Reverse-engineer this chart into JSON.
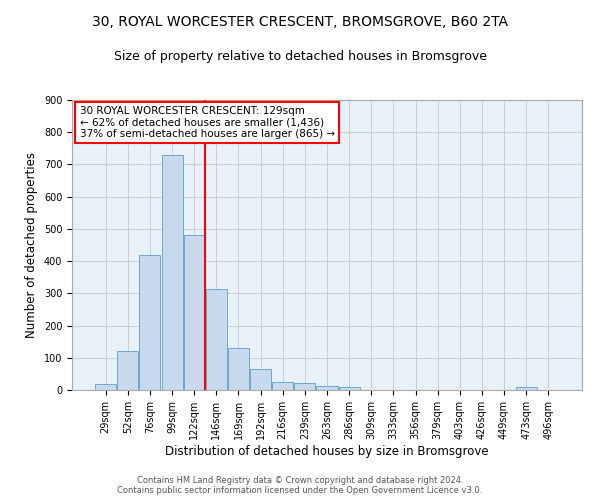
{
  "title1": "30, ROYAL WORCESTER CRESCENT, BROMSGROVE, B60 2TA",
  "title2": "Size of property relative to detached houses in Bromsgrove",
  "xlabel": "Distribution of detached houses by size in Bromsgrove",
  "ylabel": "Number of detached properties",
  "bar_color": "#c8d9ed",
  "bar_edge_color": "#6aaad4",
  "categories": [
    "29sqm",
    "52sqm",
    "76sqm",
    "99sqm",
    "122sqm",
    "146sqm",
    "169sqm",
    "192sqm",
    "216sqm",
    "239sqm",
    "263sqm",
    "286sqm",
    "309sqm",
    "333sqm",
    "356sqm",
    "379sqm",
    "403sqm",
    "426sqm",
    "449sqm",
    "473sqm",
    "496sqm"
  ],
  "values": [
    20,
    122,
    420,
    730,
    480,
    315,
    130,
    65,
    25,
    22,
    12,
    10,
    0,
    0,
    0,
    0,
    0,
    0,
    0,
    10,
    0
  ],
  "vline_pos": 4.5,
  "annotation_text": "30 ROYAL WORCESTER CRESCENT: 129sqm\n← 62% of detached houses are smaller (1,436)\n37% of semi-detached houses are larger (865) →",
  "annotation_box_color": "white",
  "annotation_box_edge_color": "red",
  "vline_color": "red",
  "ylim": [
    0,
    900
  ],
  "yticks": [
    0,
    100,
    200,
    300,
    400,
    500,
    600,
    700,
    800,
    900
  ],
  "grid_color": "#c8c8c8",
  "background_color": "#e8f0f8",
  "footer1": "Contains HM Land Registry data © Crown copyright and database right 2024.",
  "footer2": "Contains public sector information licensed under the Open Government Licence v3.0.",
  "title1_fontsize": 10,
  "title2_fontsize": 9,
  "xlabel_fontsize": 8.5,
  "ylabel_fontsize": 8.5,
  "tick_fontsize": 7,
  "annotation_fontsize": 7.5,
  "footer_fontsize": 6
}
